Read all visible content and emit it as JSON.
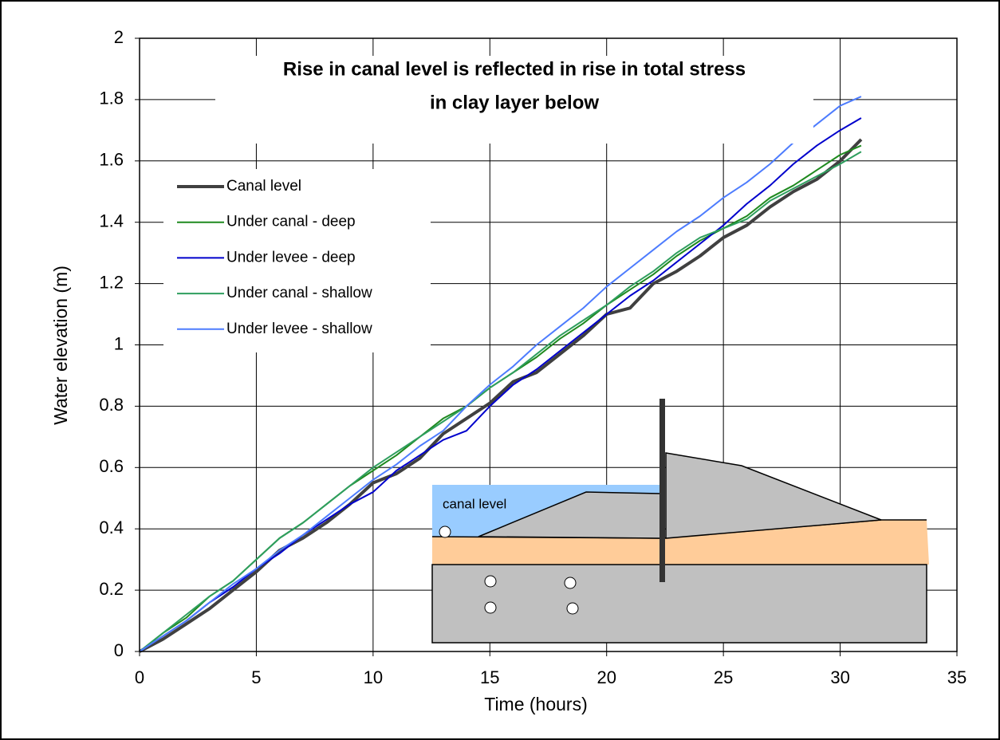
{
  "chart_data": {
    "type": "line",
    "title": [
      "Rise in canal level is reflected in rise in total stress",
      "in clay layer below"
    ],
    "x_label": "Time (hours)",
    "y_label": "Water elevation (m)",
    "xlim": [
      0,
      35
    ],
    "xticks": [
      0,
      5,
      10,
      15,
      20,
      25,
      30,
      35
    ],
    "ylim": [
      0,
      2
    ],
    "yticks": [
      0,
      0.2,
      0.4,
      0.6,
      0.8,
      1,
      1.2,
      1.4,
      1.6,
      1.8,
      2
    ],
    "grid": true,
    "legend": "upper left",
    "x": [
      0,
      1,
      2,
      3,
      4,
      5,
      6,
      7,
      8,
      9,
      10,
      11,
      12,
      13,
      14,
      15,
      16,
      17,
      18,
      19,
      20,
      21,
      22,
      23,
      24,
      25,
      26,
      27,
      28,
      29,
      30,
      30.9
    ],
    "series": [
      {
        "name": "Canal level",
        "color": "#404040",
        "width": 4,
        "values": [
          0,
          0.04,
          0.09,
          0.14,
          0.2,
          0.26,
          0.33,
          0.37,
          0.42,
          0.48,
          0.55,
          0.58,
          0.63,
          0.71,
          0.76,
          0.81,
          0.88,
          0.91,
          0.97,
          1.03,
          1.1,
          1.12,
          1.2,
          1.24,
          1.29,
          1.35,
          1.39,
          1.45,
          1.5,
          1.54,
          1.6,
          1.67
        ]
      },
      {
        "name": "Under canal - deep",
        "color": "#1f8a1f",
        "width": 2,
        "values": [
          0,
          0.06,
          0.11,
          0.18,
          0.23,
          0.3,
          0.37,
          0.42,
          0.48,
          0.54,
          0.59,
          0.64,
          0.7,
          0.76,
          0.8,
          0.86,
          0.91,
          0.96,
          1.02,
          1.07,
          1.13,
          1.18,
          1.23,
          1.29,
          1.34,
          1.38,
          1.42,
          1.48,
          1.52,
          1.57,
          1.62,
          1.65
        ]
      },
      {
        "name": "Under levee - deep",
        "color": "#0000cc",
        "width": 2,
        "values": [
          0,
          0.05,
          0.1,
          0.16,
          0.21,
          0.27,
          0.32,
          0.38,
          0.43,
          0.48,
          0.52,
          0.59,
          0.64,
          0.69,
          0.72,
          0.8,
          0.87,
          0.92,
          0.98,
          1.04,
          1.1,
          1.16,
          1.21,
          1.27,
          1.33,
          1.39,
          1.46,
          1.52,
          1.59,
          1.65,
          1.7,
          1.74
        ]
      },
      {
        "name": "Under canal - shallow",
        "color": "#2e9e5e",
        "width": 2,
        "values": [
          0,
          0.06,
          0.12,
          0.18,
          0.23,
          0.3,
          0.37,
          0.42,
          0.48,
          0.54,
          0.6,
          0.65,
          0.7,
          0.75,
          0.8,
          0.86,
          0.91,
          0.97,
          1.03,
          1.08,
          1.13,
          1.19,
          1.24,
          1.3,
          1.35,
          1.38,
          1.41,
          1.47,
          1.51,
          1.55,
          1.59,
          1.63
        ]
      },
      {
        "name": "Under levee - shallow",
        "color": "#4d7cfe",
        "width": 2,
        "values": [
          0,
          0.05,
          0.1,
          0.16,
          0.22,
          0.27,
          0.33,
          0.38,
          0.44,
          0.5,
          0.56,
          0.61,
          0.67,
          0.72,
          0.8,
          0.87,
          0.93,
          1.0,
          1.06,
          1.12,
          1.19,
          1.25,
          1.31,
          1.37,
          1.42,
          1.48,
          1.53,
          1.59,
          1.66,
          1.72,
          1.78,
          1.81
        ]
      }
    ],
    "annotations": [
      {
        "text": "canal level"
      }
    ]
  }
}
